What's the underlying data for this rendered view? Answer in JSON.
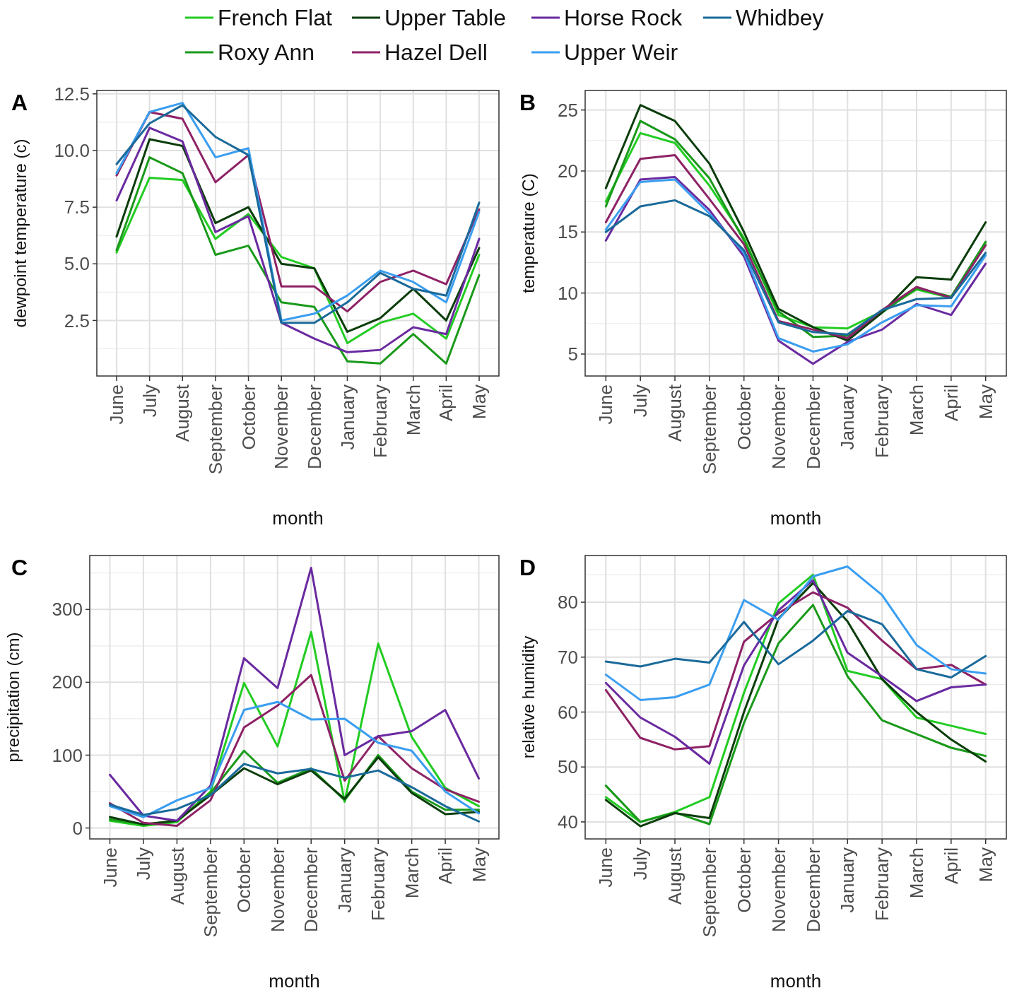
{
  "chart_data": [
    {
      "type": "line",
      "title": "A",
      "xlabel": "month",
      "ylabel": "dewpoint temperature (c)",
      "categories": [
        "June",
        "July",
        "August",
        "September",
        "October",
        "November",
        "December",
        "January",
        "February",
        "March",
        "April",
        "May"
      ],
      "ylim": [
        0.05,
        12.65
      ],
      "yticks": [
        {
          "value": 2.5,
          "label": "2.5"
        },
        {
          "value": 5,
          "label": "5.0"
        },
        {
          "value": 7.5,
          "label": "7.5"
        },
        {
          "value": 10,
          "label": "10.0"
        },
        {
          "value": 12.5,
          "label": "12.5"
        }
      ],
      "grid": true,
      "legend": "top",
      "series": [
        {
          "name": "French Flat",
          "color": "#22cc22",
          "values": [
            5.5,
            8.8,
            8.7,
            6.1,
            7.2,
            5.3,
            4.8,
            1.5,
            2.4,
            2.8,
            1.7,
            5.4
          ]
        },
        {
          "name": "Roxy Ann",
          "color": "#1a9a1a",
          "values": [
            5.6,
            9.7,
            9.0,
            5.4,
            5.8,
            3.3,
            3.1,
            0.7,
            0.6,
            1.9,
            0.6,
            4.5
          ]
        },
        {
          "name": "Upper Table",
          "color": "#0b3d0b",
          "values": [
            6.2,
            10.5,
            10.2,
            6.8,
            7.5,
            5.0,
            4.8,
            2.0,
            2.6,
            3.9,
            2.5,
            5.7
          ]
        },
        {
          "name": "Hazel Dell",
          "color": "#8e2266",
          "values": [
            8.9,
            11.7,
            11.4,
            8.6,
            9.8,
            4.0,
            4.0,
            2.9,
            4.2,
            4.7,
            4.1,
            7.4
          ]
        },
        {
          "name": "Horse Rock",
          "color": "#6a2aa0",
          "values": [
            7.8,
            11.0,
            10.4,
            6.4,
            7.1,
            2.4,
            1.7,
            1.1,
            1.2,
            2.2,
            1.9,
            6.1
          ]
        },
        {
          "name": "Upper Weir",
          "color": "#3a9ef0",
          "values": [
            9.0,
            11.7,
            12.1,
            9.7,
            10.1,
            2.5,
            2.8,
            3.6,
            4.7,
            4.2,
            3.3,
            7.3
          ]
        },
        {
          "name": "Whidbey",
          "color": "#1a6a9a",
          "values": [
            9.4,
            11.2,
            12.0,
            10.6,
            9.8,
            2.4,
            2.4,
            3.3,
            4.6,
            3.9,
            3.6,
            7.7
          ]
        }
      ]
    },
    {
      "type": "line",
      "title": "B",
      "xlabel": "month",
      "ylabel": "temperature (C)",
      "categories": [
        "June",
        "July",
        "August",
        "September",
        "October",
        "November",
        "December",
        "January",
        "February",
        "March",
        "April",
        "May"
      ],
      "ylim": [
        3.2,
        26.6
      ],
      "yticks": [
        5,
        10,
        15,
        20,
        25
      ],
      "grid": true,
      "series": [
        {
          "color": "#22cc22",
          "values": [
            17.5,
            23.1,
            22.3,
            18.8,
            14.5,
            8.2,
            7.2,
            7.1,
            8.5,
            10.3,
            9.6,
            14.0
          ]
        },
        {
          "color": "#1a9a1a",
          "values": [
            17.1,
            24.1,
            22.6,
            19.4,
            14.3,
            8.5,
            6.4,
            6.5,
            8.4,
            10.4,
            9.7,
            14.2
          ]
        },
        {
          "color": "#0b3d0b",
          "values": [
            18.6,
            25.4,
            24.1,
            20.6,
            15.0,
            8.7,
            7.2,
            6.1,
            8.4,
            11.3,
            11.1,
            15.8
          ]
        },
        {
          "color": "#8e2266",
          "values": [
            15.8,
            21.0,
            21.3,
            17.7,
            14.0,
            7.7,
            7.0,
            6.3,
            8.6,
            10.5,
            9.6,
            13.9
          ]
        },
        {
          "color": "#6a2aa0",
          "values": [
            14.3,
            19.3,
            19.5,
            16.8,
            13.0,
            6.1,
            4.2,
            6.0,
            7.0,
            9.1,
            8.2,
            12.4
          ]
        },
        {
          "color": "#3a9ef0",
          "values": [
            15.2,
            19.1,
            19.3,
            16.5,
            13.3,
            6.3,
            5.2,
            5.8,
            7.6,
            9.0,
            8.9,
            13.1
          ]
        },
        {
          "color": "#1a6a9a",
          "values": [
            15.0,
            17.1,
            17.6,
            16.3,
            13.5,
            7.6,
            6.8,
            6.6,
            8.6,
            9.5,
            9.6,
            13.3
          ]
        }
      ]
    },
    {
      "type": "line",
      "title": "C",
      "xlabel": "month",
      "ylabel": "precipitation (cm)",
      "categories": [
        "June",
        "July",
        "August",
        "September",
        "October",
        "November",
        "December",
        "January",
        "February",
        "March",
        "April",
        "May"
      ],
      "ylim": [
        -15,
        374
      ],
      "yticks": [
        0,
        100,
        200,
        300
      ],
      "grid": true,
      "series": [
        {
          "color": "#22cc22",
          "values": [
            10,
            3,
            8,
            50,
            199,
            112,
            269,
            36,
            253,
            125,
            55,
            30
          ]
        },
        {
          "color": "#1a9a1a",
          "values": [
            12,
            5,
            10,
            48,
            106,
            62,
            82,
            38,
            100,
            50,
            25,
            25
          ]
        },
        {
          "color": "#0b3d0b",
          "values": [
            15,
            5,
            10,
            45,
            82,
            60,
            79,
            40,
            97,
            48,
            19,
            22
          ]
        },
        {
          "color": "#8e2266",
          "values": [
            34,
            7,
            3,
            38,
            138,
            168,
            210,
            65,
            126,
            82,
            53,
            36
          ]
        },
        {
          "color": "#6a2aa0",
          "values": [
            73,
            17,
            10,
            58,
            233,
            192,
            357,
            100,
            126,
            133,
            162,
            68
          ]
        },
        {
          "color": "#3a9ef0",
          "values": [
            30,
            15,
            38,
            55,
            162,
            173,
            149,
            150,
            117,
            106,
            50,
            20
          ]
        },
        {
          "color": "#1a6a9a",
          "values": [
            32,
            18,
            26,
            45,
            88,
            75,
            81,
            69,
            79,
            56,
            30,
            9
          ]
        }
      ]
    },
    {
      "type": "line",
      "title": "D",
      "xlabel": "month",
      "ylabel": "relative humidity",
      "categories": [
        "June",
        "July",
        "August",
        "September",
        "October",
        "November",
        "December",
        "January",
        "February",
        "March",
        "April",
        "May"
      ],
      "ylim": [
        36.9,
        88.5
      ],
      "yticks": [
        40,
        50,
        60,
        70,
        80
      ],
      "grid": true,
      "series": [
        {
          "color": "#22cc22",
          "values": [
            44.5,
            40.0,
            41.8,
            44.5,
            63.5,
            79.8,
            85.0,
            67.5,
            66.0,
            59.0,
            57.5,
            56.0
          ]
        },
        {
          "color": "#1a9a1a",
          "values": [
            46.6,
            40.0,
            41.7,
            39.6,
            58.0,
            72.5,
            79.5,
            66.5,
            58.5,
            56.0,
            53.5,
            52.0
          ]
        },
        {
          "color": "#0b3d0b",
          "values": [
            44.0,
            39.2,
            41.6,
            40.7,
            60.0,
            77.0,
            83.5,
            76.5,
            66.0,
            60.0,
            55.0,
            51.0
          ]
        },
        {
          "color": "#8e2266",
          "values": [
            64.0,
            55.3,
            53.2,
            53.8,
            72.8,
            78.0,
            81.8,
            79.0,
            73.0,
            67.8,
            68.6,
            65.0
          ]
        },
        {
          "color": "#6a2aa0",
          "values": [
            65.3,
            59.0,
            55.5,
            50.6,
            68.5,
            78.5,
            84.0,
            70.8,
            66.5,
            62.0,
            64.5,
            65.0
          ]
        },
        {
          "color": "#3a9ef0",
          "values": [
            66.8,
            62.2,
            62.7,
            65.0,
            80.4,
            76.8,
            84.7,
            86.5,
            81.3,
            72.2,
            67.8,
            67.0
          ]
        },
        {
          "color": "#1a6a9a",
          "values": [
            69.2,
            68.3,
            69.7,
            69.0,
            76.4,
            68.7,
            73.0,
            78.4,
            76.0,
            67.8,
            66.3,
            70.2
          ]
        }
      ]
    }
  ]
}
